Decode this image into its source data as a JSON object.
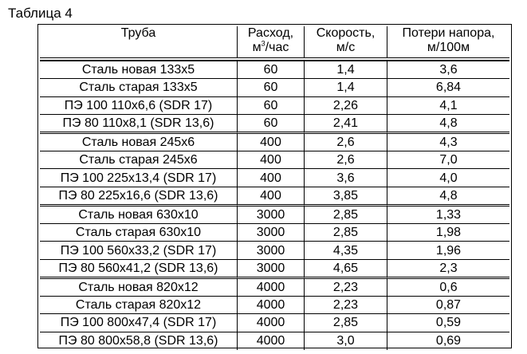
{
  "caption": "Таблица 4",
  "headers": {
    "pipe": "Труба",
    "flow_prefix": "Расход,",
    "flow_unit_base": "м",
    "flow_unit_sup": "3",
    "flow_unit_rest": "/час",
    "speed_line1": "Скорость,",
    "speed_line2": "м/с",
    "loss_line1": "Потери напора,",
    "loss_line2": "м/100м"
  },
  "rows": [
    {
      "pipe": "Сталь новая 133х5",
      "flow": "60",
      "speed": "1,4",
      "loss": "3,6"
    },
    {
      "pipe": "Сталь старая 133х5",
      "flow": "60",
      "speed": "1,4",
      "loss": "6,84"
    },
    {
      "pipe": "ПЭ 100 110х6,6 (SDR 17)",
      "flow": "60",
      "speed": "2,26",
      "loss": "4,1"
    },
    {
      "pipe": "ПЭ 80 110х8,1 (SDR 13,6)",
      "flow": "60",
      "speed": "2,41",
      "loss": "4,8"
    },
    {
      "pipe": "Сталь новая 245х6",
      "flow": "400",
      "speed": "2,6",
      "loss": "4,3"
    },
    {
      "pipe": "Сталь старая 245х6",
      "flow": "400",
      "speed": "2,6",
      "loss": "7,0"
    },
    {
      "pipe": "ПЭ 100 225х13,4 (SDR 17)",
      "flow": "400",
      "speed": "3,6",
      "loss": "4,0"
    },
    {
      "pipe": "ПЭ 80 225х16,6 (SDR 13,6)",
      "flow": "400",
      "speed": "3,85",
      "loss": "4,8"
    },
    {
      "pipe": "Сталь новая 630х10",
      "flow": "3000",
      "speed": "2,85",
      "loss": "1,33"
    },
    {
      "pipe": "Сталь старая 630х10",
      "flow": "3000",
      "speed": "2,85",
      "loss": "1,98"
    },
    {
      "pipe": "ПЭ 100 560х33,2 (SDR 17)",
      "flow": "3000",
      "speed": "4,35",
      "loss": "1,96"
    },
    {
      "pipe": "ПЭ 80 560х41,2 (SDR 13,6)",
      "flow": "3000",
      "speed": "4,65",
      "loss": "2,3"
    },
    {
      "pipe": "Сталь новая 820х12",
      "flow": "4000",
      "speed": "2,23",
      "loss": "0,6"
    },
    {
      "pipe": "Сталь старая 820х12",
      "flow": "4000",
      "speed": "2,23",
      "loss": "0,87"
    },
    {
      "pipe": "ПЭ 100 800х47,4 (SDR 17)",
      "flow": "4000",
      "speed": "2,85",
      "loss": "0,59"
    },
    {
      "pipe": "ПЭ 80 800х58,8 (SDR 13,6)",
      "flow": "4000",
      "speed": "3,0",
      "loss": "0,69"
    }
  ]
}
